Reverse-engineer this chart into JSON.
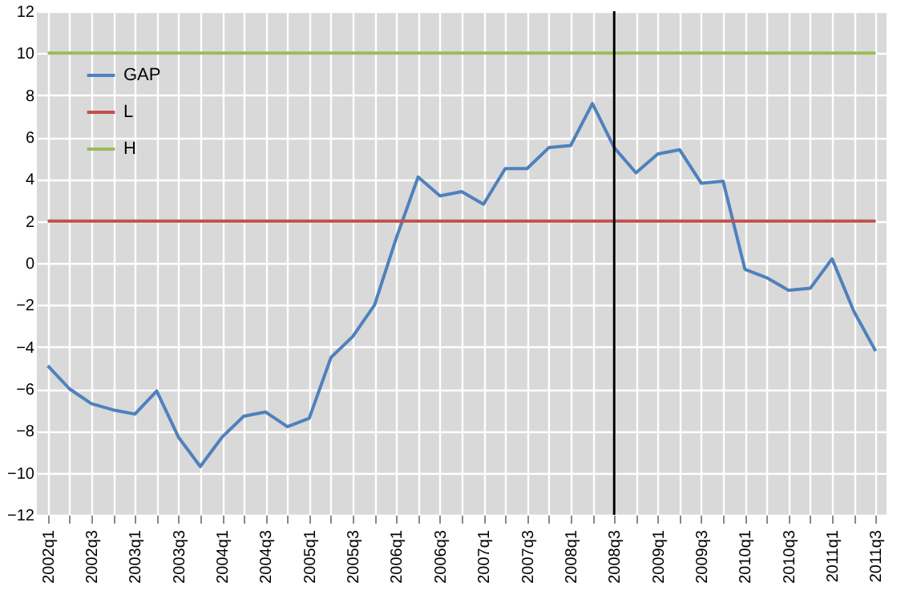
{
  "chart_data": {
    "type": "line",
    "categories": [
      "2002q1",
      null,
      "2002q3",
      null,
      "2003q1",
      null,
      "2003q3",
      null,
      "2004q1",
      null,
      "2004q3",
      null,
      "2005q1",
      null,
      "2005q3",
      null,
      "2006q1",
      null,
      "2006q3",
      null,
      "2007q1",
      null,
      "2007q3",
      null,
      "2008q1",
      null,
      "2008q3",
      null,
      "2009q1",
      null,
      "2009q3",
      null,
      "2010q1",
      null,
      "2010q3",
      null,
      "2011q1",
      null,
      "2011q3"
    ],
    "series": [
      {
        "name": "GAP",
        "color": "#4f81bd",
        "values": [
          -4.9,
          -6.0,
          -6.7,
          -7.0,
          -7.2,
          -6.1,
          -8.3,
          -9.7,
          -8.3,
          -7.3,
          -7.1,
          -7.8,
          -7.4,
          -4.5,
          -3.5,
          -2.0,
          1.2,
          4.1,
          3.2,
          3.4,
          2.8,
          4.5,
          4.5,
          5.5,
          5.6,
          7.6,
          5.5,
          4.3,
          5.2,
          5.4,
          3.8,
          3.9,
          -0.3,
          -0.7,
          -1.3,
          -1.2,
          0.2,
          -2.3,
          -4.2
        ]
      },
      {
        "name": "L",
        "color": "#c0504d",
        "values": [
          2,
          2,
          2,
          2,
          2,
          2,
          2,
          2,
          2,
          2,
          2,
          2,
          2,
          2,
          2,
          2,
          2,
          2,
          2,
          2,
          2,
          2,
          2,
          2,
          2,
          2,
          2,
          2,
          2,
          2,
          2,
          2,
          2,
          2,
          2,
          2,
          2,
          2,
          2
        ]
      },
      {
        "name": "H",
        "color": "#9bbb59",
        "values": [
          10,
          10,
          10,
          10,
          10,
          10,
          10,
          10,
          10,
          10,
          10,
          10,
          10,
          10,
          10,
          10,
          10,
          10,
          10,
          10,
          10,
          10,
          10,
          10,
          10,
          10,
          10,
          10,
          10,
          10,
          10,
          10,
          10,
          10,
          10,
          10,
          10,
          10,
          10
        ]
      }
    ],
    "ylim": [
      -12,
      12
    ],
    "yticks": [
      -12,
      -10,
      -8,
      -6,
      -4,
      -2,
      0,
      2,
      4,
      6,
      8,
      10,
      12
    ],
    "ref_lines": [
      {
        "axis": "x",
        "value": "2008q3",
        "color": "#000000"
      }
    ],
    "grid": true,
    "legend": "top left",
    "marker": "none",
    "line_style": "solid"
  }
}
